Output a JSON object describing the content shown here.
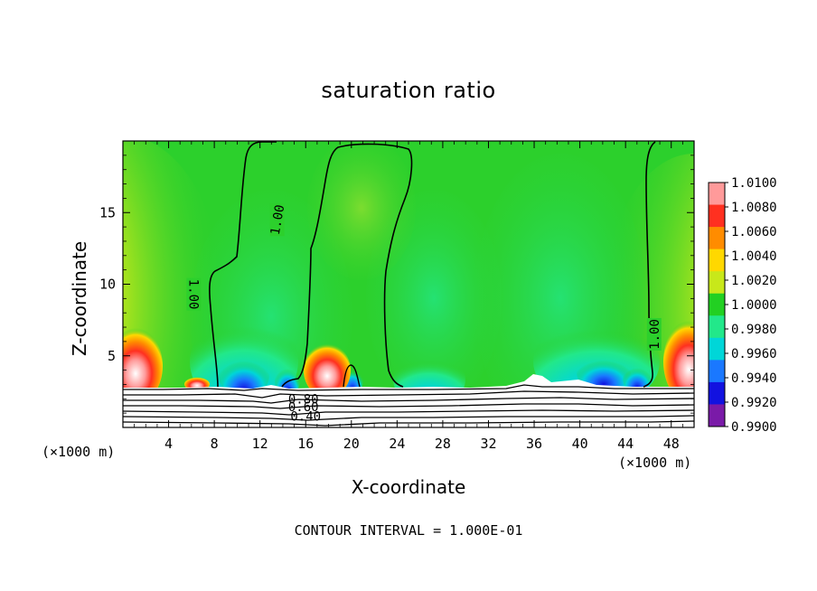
{
  "chart_data": {
    "type": "heatmap",
    "title": "saturation ratio",
    "xlabel": "X-coordinate",
    "ylabel": "Z-coordinate",
    "x_unit_label": "(×1000 m)",
    "footnote": "CONTOUR INTERVAL = 1.000E-01",
    "xlim": [
      0,
      50
    ],
    "ylim": [
      0,
      20
    ],
    "x_ticks": [
      4,
      8,
      12,
      16,
      20,
      24,
      28,
      32,
      36,
      40,
      44,
      48
    ],
    "y_ticks": [
      5,
      10,
      15
    ],
    "colorbar": {
      "levels": [
        "1.0100",
        "1.0080",
        "1.0060",
        "1.0040",
        "1.0020",
        "1.0000",
        "0.9980",
        "0.9960",
        "0.9940",
        "0.9920",
        "0.9900"
      ],
      "colors": [
        "#ff9a9a",
        "#ff3020",
        "#ff8c00",
        "#ffd800",
        "#c8e81a",
        "#22d022",
        "#22e88a",
        "#00d6d8",
        "#1a78ff",
        "#1212e0",
        "#7a1aa8"
      ]
    },
    "background_color": "#2cd02c",
    "contour_labels": [
      {
        "text": "1.00",
        "x": 6.2,
        "z": 9.3,
        "rotation": 90
      },
      {
        "text": "1.00",
        "x": 13.5,
        "z": 14.5,
        "rotation": -80
      },
      {
        "text": "1.00",
        "x": 46.5,
        "z": 6.5,
        "rotation": -90
      },
      {
        "text": "0.80",
        "x": 15.8,
        "z": 2.0,
        "rotation": 0
      },
      {
        "text": "0.60",
        "x": 15.8,
        "z": 1.45,
        "rotation": 0
      },
      {
        "text": "0.40",
        "x": 16.0,
        "z": 0.8,
        "rotation": 0
      }
    ]
  }
}
